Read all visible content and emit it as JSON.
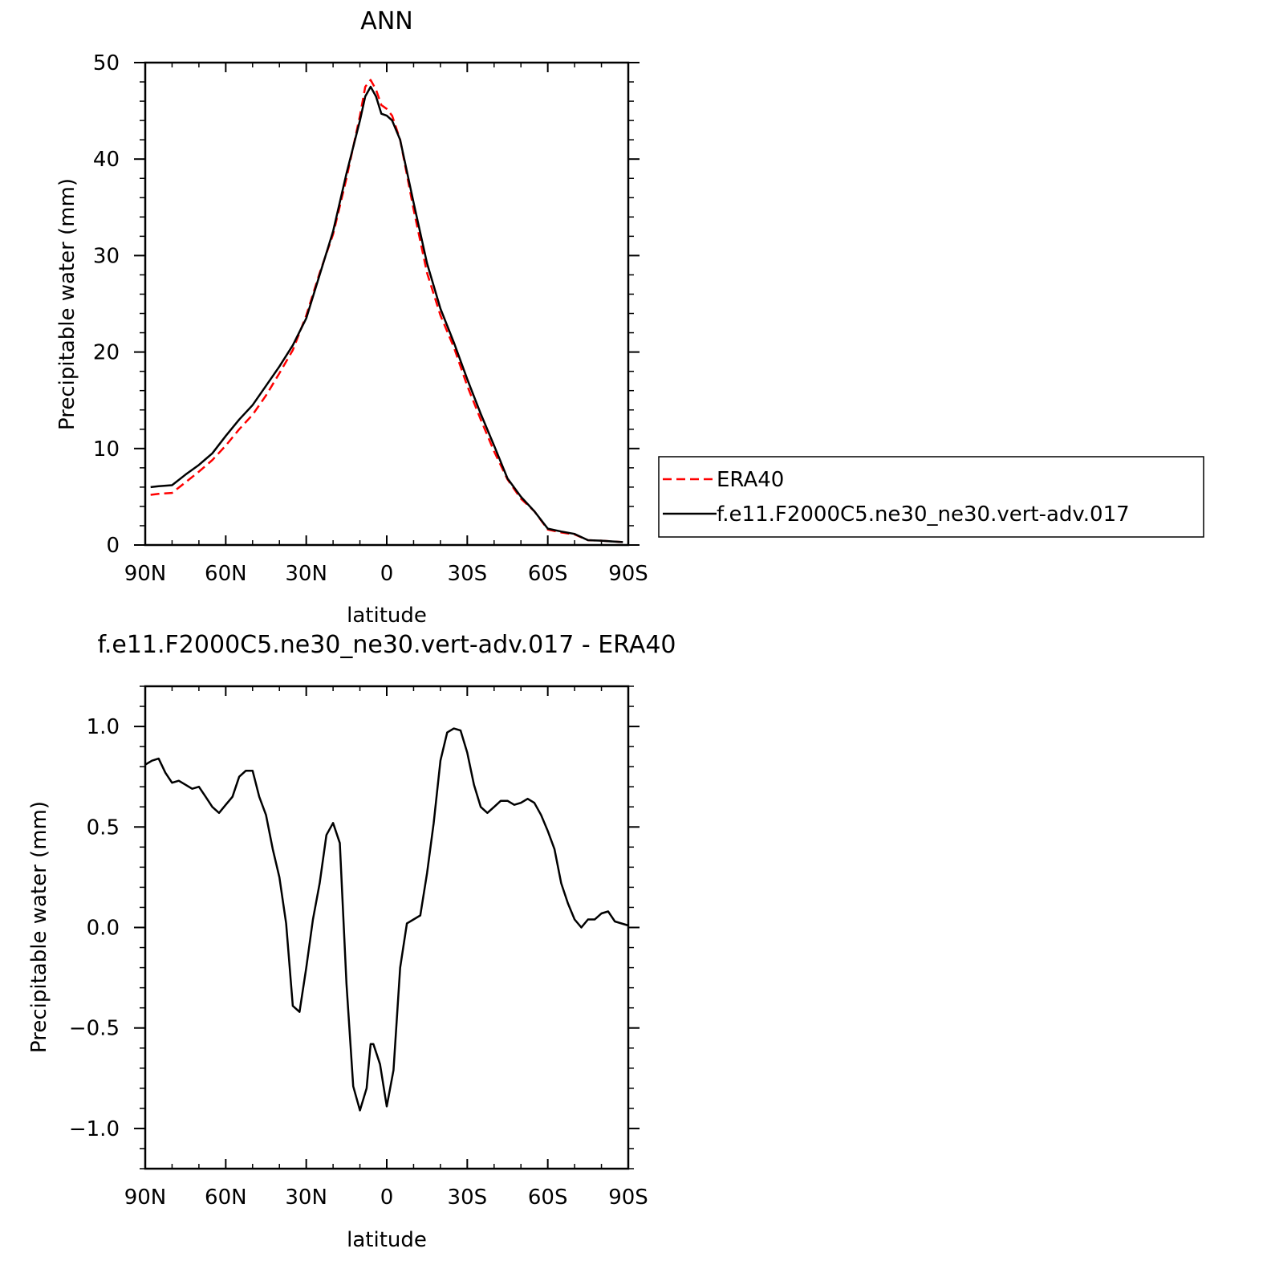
{
  "chart_data": [
    {
      "type": "line",
      "title": "ANN",
      "xlabel": "latitude",
      "ylabel": "Precipitable water (mm)",
      "xlim": [
        90,
        -90
      ],
      "ylim": [
        0,
        50
      ],
      "x_ticks": [
        {
          "value": 90,
          "label": "90N"
        },
        {
          "value": 60,
          "label": "60N"
        },
        {
          "value": 30,
          "label": "30N"
        },
        {
          "value": 0,
          "label": "0"
        },
        {
          "value": -30,
          "label": "30S"
        },
        {
          "value": -60,
          "label": "60S"
        },
        {
          "value": -90,
          "label": "90S"
        }
      ],
      "y_ticks": [
        {
          "value": 0,
          "label": "0"
        },
        {
          "value": 10,
          "label": "10"
        },
        {
          "value": 20,
          "label": "20"
        },
        {
          "value": 30,
          "label": "30"
        },
        {
          "value": 40,
          "label": "40"
        },
        {
          "value": 50,
          "label": "50"
        }
      ],
      "legend": "right",
      "series": [
        {
          "name": "ERA40",
          "color": "#ff0000",
          "dash": true,
          "x": [
            88,
            85,
            80,
            75,
            70,
            65,
            60,
            55,
            50,
            45,
            40,
            35,
            30,
            25,
            20,
            15,
            10,
            8,
            6,
            4,
            2,
            0,
            -2,
            -5,
            -10,
            -15,
            -20,
            -25,
            -30,
            -35,
            -40,
            -45,
            -50,
            -55,
            -60,
            -65,
            -70,
            -75,
            -80,
            -85,
            -88
          ],
          "y": [
            5.2,
            5.3,
            5.4,
            6.5,
            7.6,
            8.8,
            10.3,
            12.0,
            13.5,
            15.5,
            17.8,
            20.2,
            23.8,
            28.2,
            32.2,
            38.0,
            44.5,
            47.5,
            48.2,
            47.2,
            45.6,
            45.2,
            44.5,
            42.0,
            34.8,
            28.2,
            23.8,
            20.5,
            16.5,
            13.0,
            9.7,
            6.8,
            4.8,
            3.5,
            1.6,
            1.3,
            1.1,
            0.5,
            0.45,
            0.35,
            0.3
          ]
        },
        {
          "name": "f.e11.F2000C5.ne30_ne30.vert-adv.017",
          "color": "#000000",
          "dash": false,
          "x": [
            88,
            85,
            80,
            75,
            70,
            65,
            60,
            55,
            50,
            45,
            40,
            35,
            30,
            25,
            20,
            15,
            10,
            8,
            6,
            4,
            2,
            0,
            -2,
            -5,
            -10,
            -15,
            -20,
            -25,
            -30,
            -35,
            -40,
            -45,
            -50,
            -55,
            -60,
            -65,
            -70,
            -75,
            -80,
            -85,
            -88
          ],
          "y": [
            6.0,
            6.1,
            6.2,
            7.3,
            8.3,
            9.5,
            11.3,
            13.0,
            14.5,
            16.5,
            18.5,
            20.7,
            23.5,
            28.0,
            32.5,
            38.5,
            44.0,
            46.5,
            47.5,
            46.5,
            44.7,
            44.5,
            44.0,
            42.0,
            35.5,
            29.2,
            24.5,
            21.0,
            17.2,
            13.6,
            10.3,
            6.9,
            5.0,
            3.5,
            1.7,
            1.4,
            1.15,
            0.5,
            0.45,
            0.35,
            0.3
          ]
        }
      ]
    },
    {
      "type": "line",
      "title": "f.e11.F2000C5.ne30_ne30.vert-adv.017 - ERA40",
      "xlabel": "latitude",
      "ylabel": "Precipitable water (mm)",
      "xlim": [
        90,
        -90
      ],
      "ylim": [
        -1.2,
        1.2
      ],
      "x_ticks": [
        {
          "value": 90,
          "label": "90N"
        },
        {
          "value": 60,
          "label": "60N"
        },
        {
          "value": 30,
          "label": "30N"
        },
        {
          "value": 0,
          "label": "0"
        },
        {
          "value": -30,
          "label": "30S"
        },
        {
          "value": -60,
          "label": "60S"
        },
        {
          "value": -90,
          "label": "90S"
        }
      ],
      "y_ticks": [
        {
          "value": -1.0,
          "label": "−1.0"
        },
        {
          "value": -0.5,
          "label": "−0.5"
        },
        {
          "value": 0.0,
          "label": "0.0"
        },
        {
          "value": 0.5,
          "label": "0.5"
        },
        {
          "value": 1.0,
          "label": "1.0"
        }
      ],
      "series": [
        {
          "color": "#000000",
          "dash": false,
          "x": [
            90,
            87.5,
            85,
            82.5,
            80,
            77.5,
            75,
            72.5,
            70,
            67.5,
            65,
            62.5,
            60,
            57.5,
            55,
            52.5,
            50,
            47.5,
            45,
            42.5,
            40,
            37.5,
            35,
            32.5,
            30,
            27.5,
            25,
            22.5,
            20,
            17.5,
            15,
            12.5,
            10,
            7.5,
            6,
            5,
            2.5,
            0,
            -2.5,
            -5,
            -7.5,
            -10,
            -12.5,
            -15,
            -17.5,
            -20,
            -22.5,
            -25,
            -27.5,
            -30,
            -32.5,
            -35,
            -37.5,
            -40,
            -42.5,
            -45,
            -47.5,
            -50,
            -52.5,
            -55,
            -57.5,
            -60,
            -62.5,
            -65,
            -67.5,
            -70,
            -72.5,
            -75,
            -77.5,
            -80,
            -82.5,
            -85,
            -87.5,
            -90
          ],
          "y": [
            0.81,
            0.83,
            0.84,
            0.77,
            0.72,
            0.73,
            0.71,
            0.69,
            0.7,
            0.65,
            0.6,
            0.57,
            0.61,
            0.65,
            0.75,
            0.78,
            0.78,
            0.65,
            0.56,
            0.39,
            0.25,
            0.02,
            -0.39,
            -0.42,
            -0.2,
            0.04,
            0.22,
            0.46,
            0.52,
            0.42,
            -0.28,
            -0.79,
            -0.91,
            -0.8,
            -0.58,
            -0.58,
            -0.68,
            -0.89,
            -0.71,
            -0.2,
            0.02,
            0.04,
            0.06,
            0.27,
            0.52,
            0.83,
            0.97,
            0.99,
            0.98,
            0.87,
            0.71,
            0.6,
            0.57,
            0.6,
            0.63,
            0.63,
            0.61,
            0.62,
            0.64,
            0.62,
            0.56,
            0.48,
            0.39,
            0.22,
            0.12,
            0.04,
            0.0,
            0.04,
            0.04,
            0.07,
            0.08,
            0.03,
            0.02,
            0.01
          ]
        }
      ]
    }
  ]
}
